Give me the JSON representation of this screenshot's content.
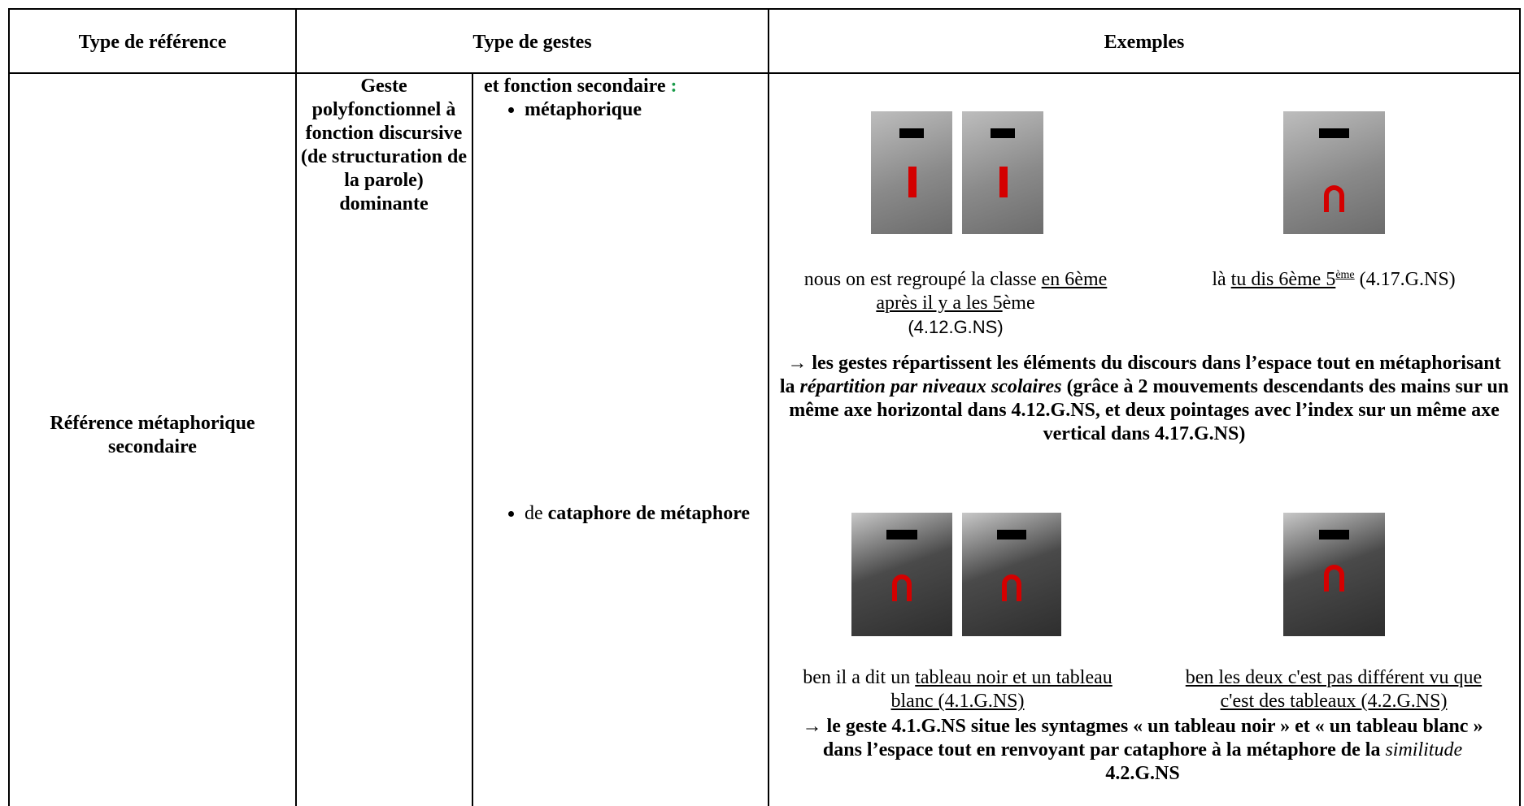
{
  "table": {
    "headers": [
      "Type de référence",
      "Type de gestes",
      "Exemples"
    ],
    "reference_type": "Référence métaphorique secondaire",
    "dominant_function": "Geste polyfonctionnel à fonction discursive (de structuration de la parole) dominante",
    "secondary_function": [
      "et fonction secondaire ",
      ":"
    ],
    "bullets": [
      [
        "métaphorique"
      ],
      [
        "de ",
        "cataphore de métaphore"
      ]
    ],
    "examples": [
      {
        "captions": [
          [
            "nous on est regroupé la classe ",
            "en 6ème après il y a les 5",
            "ème",
            "(4.12.G.NS)"
          ],
          [
            "là ",
            "tu dis 6ème 5",
            "ème",
            "(4.17.G.NS)"
          ]
        ],
        "conclusion": [
          "→ les gestes répartissent les éléments du discours dans l’espace tout en métaphorisant la ",
          "répartition par niveaux scolaires",
          " (grâce à 2 mouvements descendants des mains sur un même axe horizontal dans 4.12.G.NS, et deux pointages avec l’index sur un même axe vertical dans 4.17.G.NS)"
        ]
      },
      {
        "captions": [
          [
            "ben il a dit un ",
            "tableau noir et un tableau blanc (4.1.G.NS)"
          ],
          [
            "ben les deux c'est pas différent vu que c'est des tableaux (4.2.G.NS)"
          ]
        ],
        "conclusion": [
          "→ le geste 4.1.G.NS situe les syntagmes « un tableau noir » et « un tableau blanc » dans l’espace tout en renvoyant par cataphore à la métaphore de la ",
          "similitude",
          " 4.2.G.NS"
        ]
      }
    ]
  }
}
